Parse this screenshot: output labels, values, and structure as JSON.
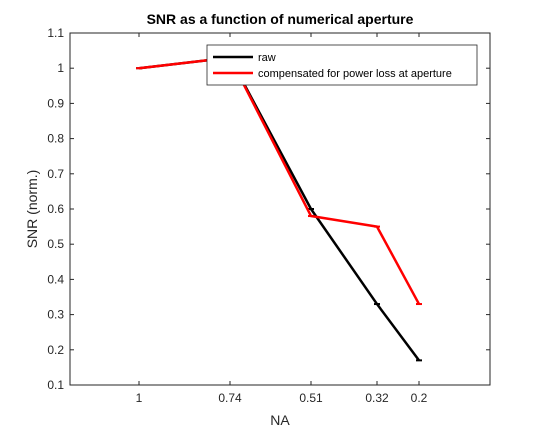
{
  "chart_data": {
    "type": "line",
    "title": "SNR as a function of numerical aperture",
    "xlabel": "NA",
    "ylabel": "SNR (norm.)",
    "x_ticks": [
      "1",
      "0.74",
      "0.51",
      "0.32",
      "0.2"
    ],
    "x_tick_values": [
      1,
      0.74,
      0.51,
      0.32,
      0.2
    ],
    "x_axis_note": "reversed, non-linear category-like axis",
    "ylim": [
      0.1,
      1.1
    ],
    "y_ticks": [
      0.1,
      0.2,
      0.3,
      0.4,
      0.5,
      0.6,
      0.7,
      0.8,
      0.9,
      1,
      1.1
    ],
    "grid": false,
    "legend_position": "top-right",
    "series": [
      {
        "name": "raw",
        "color": "#000000",
        "x": [
          1,
          0.74,
          0.51,
          0.32,
          0.2
        ],
        "y": [
          1.0,
          1.03,
          0.6,
          0.33,
          0.17
        ]
      },
      {
        "name": "compensated for power loss at aperture",
        "color": "#ff0000",
        "x": [
          1,
          0.74,
          0.51,
          0.32,
          0.2
        ],
        "y": [
          1.0,
          1.03,
          0.58,
          0.55,
          0.33
        ]
      }
    ]
  }
}
